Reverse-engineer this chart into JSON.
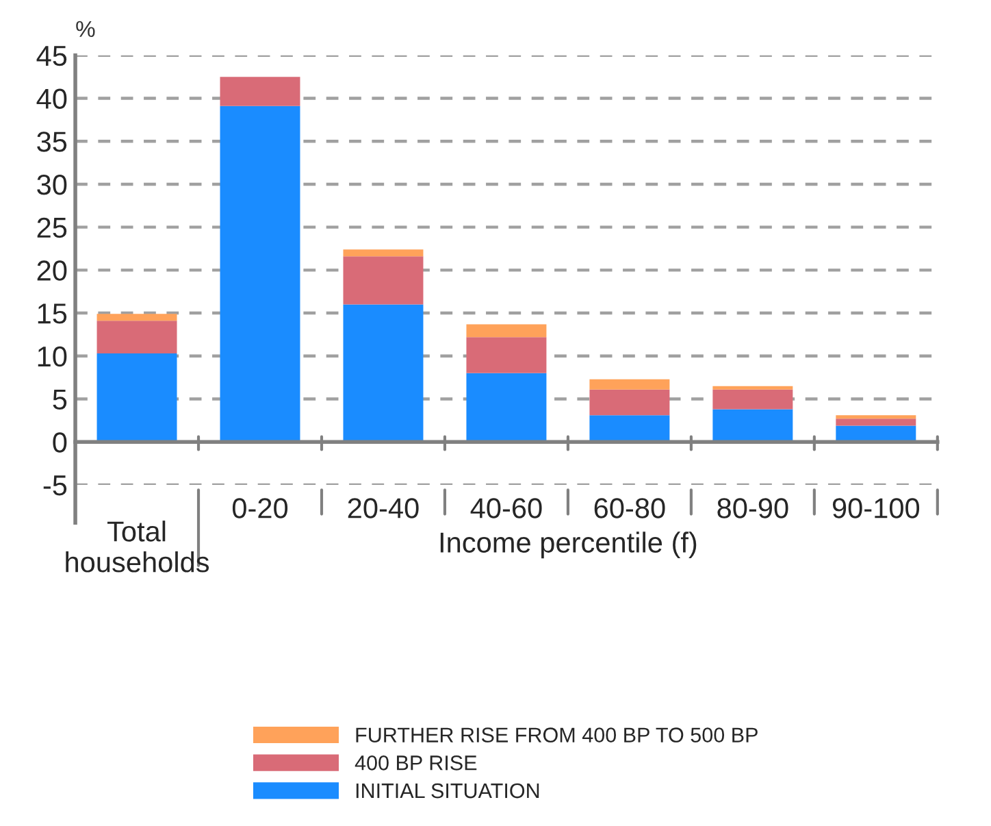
{
  "chart_data": {
    "type": "bar",
    "stacked": true,
    "ylabel": "%",
    "xlabel": "Income percentile (f)",
    "categories": [
      "Total households",
      "0-20",
      "20-40",
      "40-60",
      "60-80",
      "80-90",
      "90-100"
    ],
    "series": [
      {
        "name": "INITIAL SITUATION",
        "color": "#1a8cff",
        "values": [
          10.3,
          39.1,
          16.0,
          8.0,
          3.1,
          3.8,
          1.9
        ]
      },
      {
        "name": "400 BP RISE",
        "color": "#d96b77",
        "values": [
          3.8,
          3.4,
          5.6,
          4.2,
          3.0,
          2.3,
          0.8
        ]
      },
      {
        "name": "FURTHER RISE FROM 400 BP TO 500 BP",
        "color": "#ffa25a",
        "values": [
          0.8,
          0.0,
          0.8,
          1.5,
          1.2,
          0.4,
          0.4
        ]
      }
    ],
    "ylim": [
      -5,
      45
    ],
    "yticks": [
      -5,
      0,
      5,
      10,
      15,
      20,
      25,
      30,
      35,
      40,
      45
    ],
    "grid": "y",
    "legend": "bottom"
  }
}
